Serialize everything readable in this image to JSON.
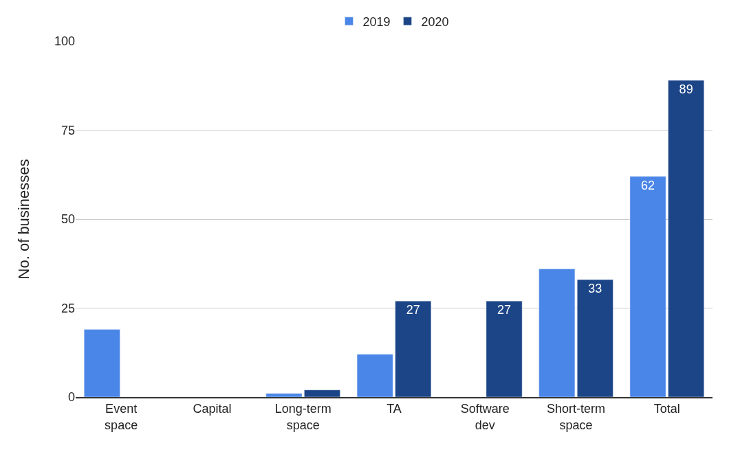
{
  "chart_data": {
    "type": "bar",
    "ylabel": "No. of businesses",
    "categories": [
      "Event space",
      "Capital",
      "Long-term space",
      "TA",
      "Software dev",
      "Short-term space",
      "Total"
    ],
    "series": [
      {
        "name": "2019",
        "color": "#4a86e8",
        "values": [
          19,
          null,
          1,
          12,
          null,
          36,
          62
        ],
        "value_labels": [
          null,
          null,
          null,
          null,
          null,
          null,
          "62"
        ]
      },
      {
        "name": "2020",
        "color": "#1c4587",
        "values": [
          null,
          null,
          2,
          27,
          27,
          33,
          89
        ],
        "value_labels": [
          null,
          null,
          null,
          "27",
          "27",
          "33",
          "89"
        ]
      }
    ],
    "ylim": [
      0,
      100
    ],
    "yticks": [
      0,
      25,
      50,
      75,
      100
    ],
    "grid": "y",
    "legend": "top"
  }
}
